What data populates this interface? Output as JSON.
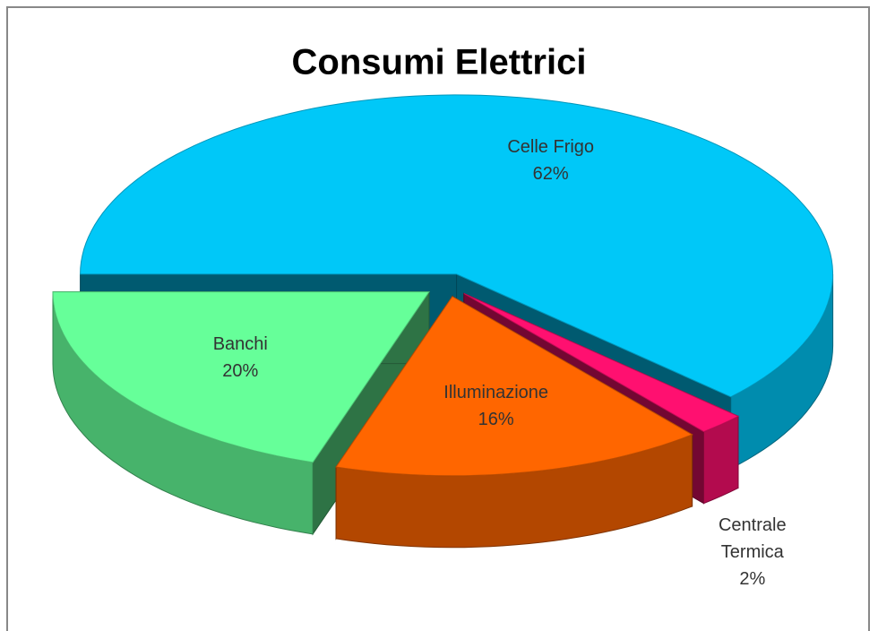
{
  "chart_data": {
    "type": "pie",
    "title": "Consumi Elettrici",
    "categories": [
      "Celle Frigo",
      "Centrale Termica",
      "Illuminazione",
      "Banchi"
    ],
    "values": [
      62,
      2,
      16,
      20
    ],
    "value_labels": [
      "62%",
      "2%",
      "16%",
      "20%"
    ],
    "colors": [
      "#00c8f8",
      "#ff1070",
      "#ff6600",
      "#66ff99"
    ],
    "exploded": true,
    "three_d": true
  }
}
